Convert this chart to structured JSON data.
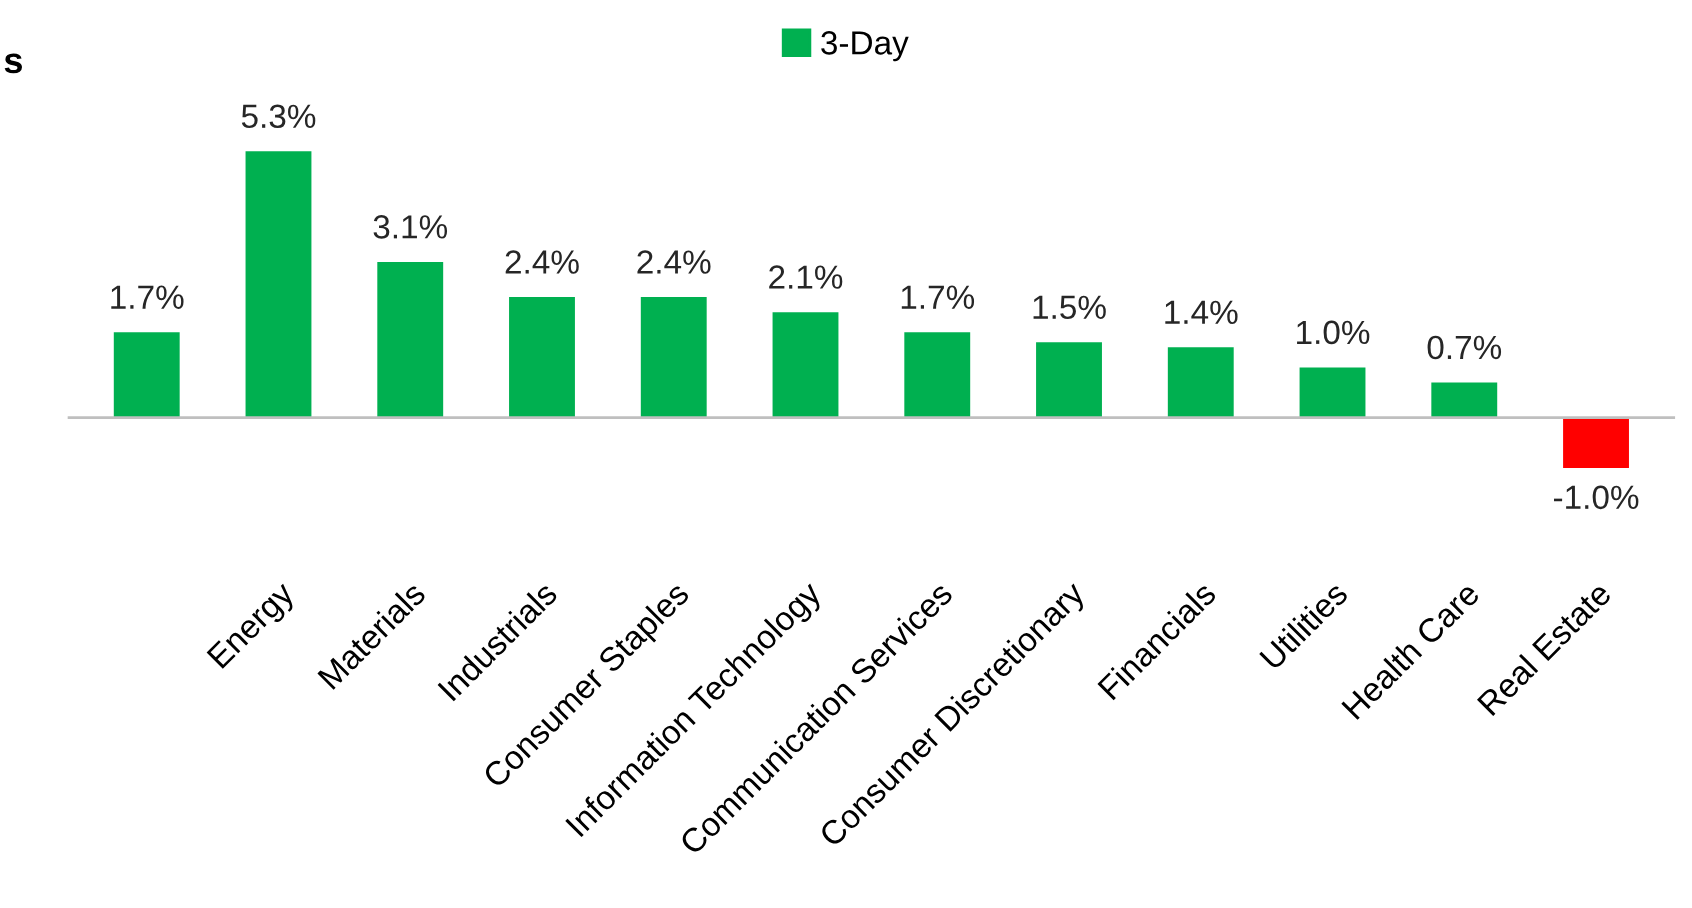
{
  "chart_data": {
    "type": "bar",
    "categories": [
      null,
      "Energy",
      "Materials",
      "Industrials",
      "Consumer Staples",
      "Information Technology",
      "Communication Services",
      "Consumer Discretionary",
      "Financials",
      "Utilities",
      "Health Care",
      "Real Estate"
    ],
    "series": [
      {
        "name": "3-Day",
        "color": "#00b050",
        "values": [
          1.7,
          5.3,
          3.1,
          2.4,
          2.4,
          2.1,
          1.7,
          1.5,
          1.4,
          1.0,
          0.7,
          -1.0
        ],
        "colors": [
          "#00b050",
          "#00b050",
          "#00b050",
          "#00b050",
          "#00b050",
          "#00b050",
          "#00b050",
          "#00b050",
          "#00b050",
          "#00b050",
          "#00b050",
          "#ff0000"
        ],
        "value_labels": [
          "1.7%",
          "5.3%",
          "3.1%",
          "2.4%",
          "2.4%",
          "2.1%",
          "1.7%",
          "1.5%",
          "1.4%",
          "1.0%",
          "0.7%",
          "-1.0%"
        ]
      }
    ],
    "legend": "top",
    "annotations": [
      "s"
    ]
  }
}
